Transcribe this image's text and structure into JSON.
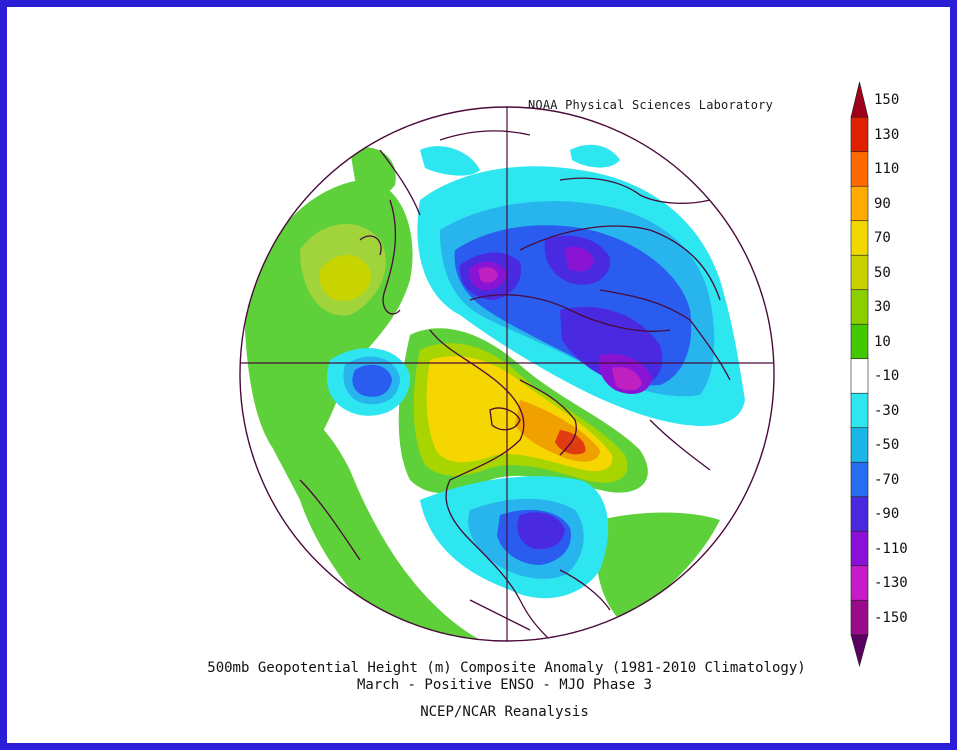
{
  "credit": "NOAA Physical Sciences Laboratory",
  "caption": {
    "line1": "500mb Geopotential Height (m) Composite Anomaly (1981-2010 Climatology)",
    "line2": "March - Positive ENSO - MJO Phase 3",
    "line3": "NCEP/NCAR Reanalysis"
  },
  "colorbar": {
    "labels": [
      "150",
      "130",
      "110",
      "90",
      "70",
      "50",
      "30",
      "10",
      "-10",
      "-30",
      "-50",
      "-70",
      "-90",
      "-110",
      "-130",
      "-150"
    ],
    "colors": [
      "#a0001a",
      "#e02000",
      "#ff6a00",
      "#ffaa00",
      "#f0d800",
      "#c8d000",
      "#8ccf00",
      "#44c800",
      "#ffffff",
      "#2ee6f0",
      "#1ab6e8",
      "#2a6cf0",
      "#4a28e0",
      "#8a10d8",
      "#c81ac8",
      "#9a0a8c",
      "#5a0060"
    ]
  },
  "map": {
    "projection": "north-polar-stereographic",
    "colors": {
      "border": "#2a1fd6",
      "coast": "#4a0a3a",
      "green": "#5ed03a",
      "lime": "#c8d400",
      "yellow": "#f6d600",
      "orange": "#f0a000",
      "red": "#e03a10",
      "cyan": "#2ee6f0",
      "lightblue": "#28b4ec",
      "blue": "#2a5cf0",
      "indigo": "#4a2ae0",
      "purple": "#8a14d4",
      "magenta": "#c020c0"
    }
  }
}
